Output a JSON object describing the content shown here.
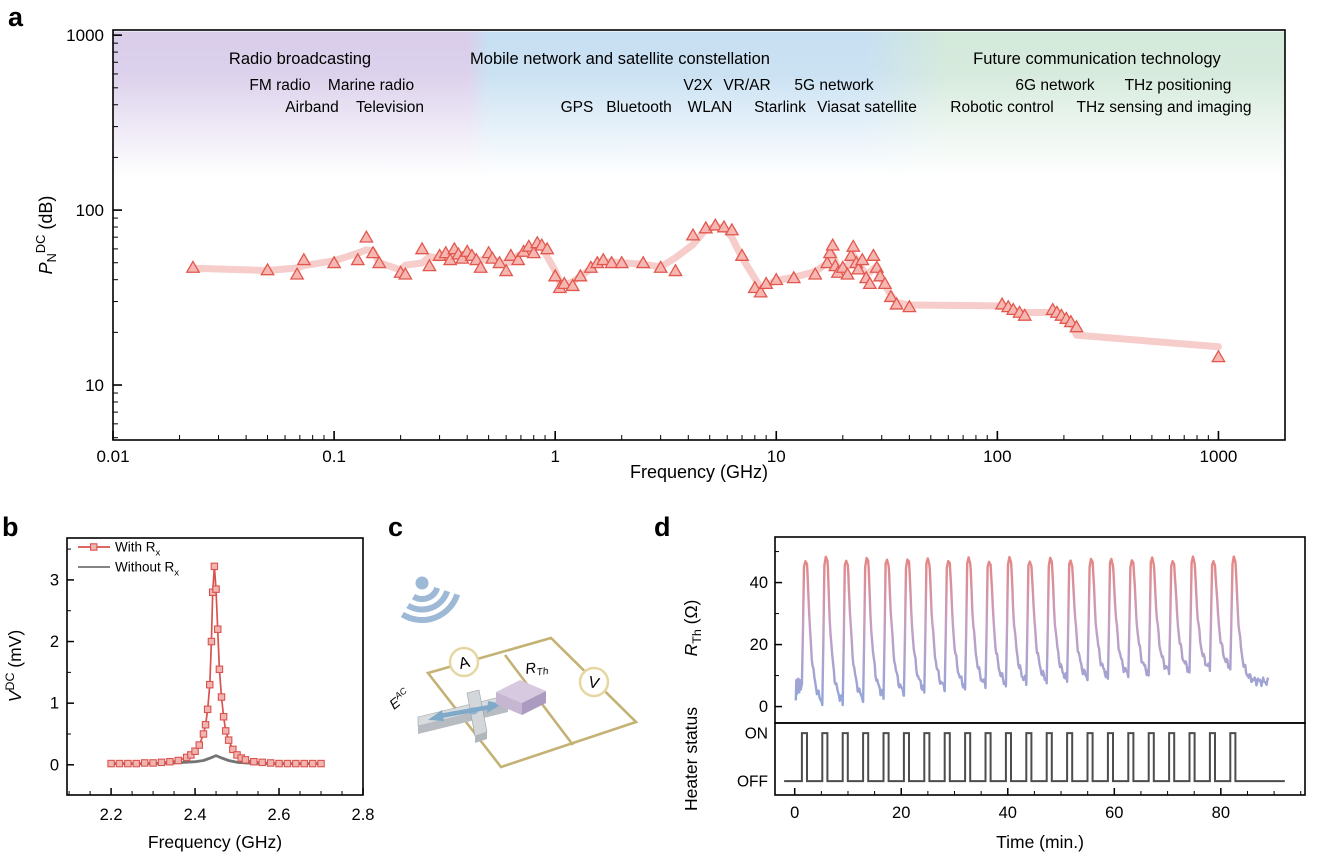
{
  "panels": {
    "a": {
      "letter": "a"
    },
    "b": {
      "letter": "b"
    },
    "c": {
      "letter": "c"
    },
    "d": {
      "letter": "d"
    }
  },
  "chart_data": [
    {
      "panel": "a",
      "type": "scatter",
      "xlabel": "Frequency (GHz)",
      "ylabel_parts": [
        [
          "P",
          "i"
        ],
        [
          "N",
          "sub"
        ],
        [
          "DC",
          "sup"
        ],
        [
          " (dB)",
          ""
        ]
      ],
      "x_scale": "log",
      "y_scale": "log",
      "xlim": [
        0.01,
        2000
      ],
      "ylim": [
        4.85,
        1070
      ],
      "xtick_values": [
        0.01,
        0.1,
        1,
        10,
        100,
        1000
      ],
      "xtick_labels": [
        "0.01",
        "0.1",
        "1",
        "10",
        "100",
        "1000"
      ],
      "ytick_values": [
        10,
        100,
        1000
      ],
      "ytick_labels": [
        "10",
        "100",
        "1000"
      ],
      "grid": false,
      "line_color": "#f5c9c5",
      "marker_fill": "#f6b7b2",
      "marker_edge": "#e2574d",
      "regions": [
        {
          "title": "Radio broadcasting",
          "title_color": "#9b9b9b",
          "band_color": "#d9cdea",
          "x_range_ghz": [
            0.01,
            0.4
          ],
          "title_cx": 300,
          "items": [
            {
              "label": "FM radio",
              "color": "#b39bd8",
              "cx": 280,
              "row": 1
            },
            {
              "label": "Marine radio",
              "color": "#f0a080",
              "cx": 371,
              "row": 1
            },
            {
              "label": "Airband",
              "color": "#86b7dc",
              "cx": 312,
              "row": 2
            },
            {
              "label": "Television",
              "color": "#a3907e",
              "cx": 390,
              "row": 2
            }
          ]
        },
        {
          "title": "Mobile network and satellite constellation",
          "title_color": "#9b9b9b",
          "band_color": "#c6dff2",
          "x_range_ghz": [
            0.5,
            25
          ],
          "title_cx": 620,
          "items": [
            {
              "label": "V2X",
              "color": "#8fb0c0",
              "cx": 698,
              "row": 1
            },
            {
              "label": "VR/AR",
              "color": "#b49bd8",
              "cx": 747,
              "row": 1
            },
            {
              "label": "5G network",
              "color": "#f0a52c",
              "cx": 834,
              "row": 1
            },
            {
              "label": "GPS",
              "color": "#d7a92c",
              "cx": 577,
              "row": 2
            },
            {
              "label": "Bluetooth",
              "color": "#62a8d8",
              "cx": 639,
              "row": 2
            },
            {
              "label": "WLAN",
              "color": "#f2a9bd",
              "cx": 710,
              "row": 2
            },
            {
              "label": "Starlink",
              "color": "#3f9fdd",
              "cx": 780,
              "row": 2
            },
            {
              "label": "Viasat satellite",
              "color": "#4fb8ba",
              "cx": 867,
              "row": 2
            }
          ]
        },
        {
          "title": "Future communication technology",
          "title_color": "#9b9b9b",
          "band_color": "#d3e9da",
          "x_range_ghz": [
            60,
            2000
          ],
          "title_cx": 1097,
          "items": [
            {
              "label": "6G network",
              "color": "#eaa41e",
              "cx": 1055,
              "row": 1
            },
            {
              "label": "THz positioning",
              "color": "#68abdc",
              "cx": 1178,
              "row": 1
            },
            {
              "label": "Robotic control",
              "color": "#c49b22",
              "cx": 1002,
              "row": 2
            },
            {
              "label": "THz sensing and imaging",
              "color": "#f195bb",
              "cx": 1164,
              "row": 2
            }
          ]
        }
      ],
      "points": [
        [
          0.023,
          47
        ],
        [
          0.05,
          45.5
        ],
        [
          0.068,
          43
        ],
        [
          0.073,
          52
        ],
        [
          0.1,
          50
        ],
        [
          0.128,
          52
        ],
        [
          0.14,
          70
        ],
        [
          0.15,
          57
        ],
        [
          0.16,
          50
        ],
        [
          0.2,
          44
        ],
        [
          0.21,
          43
        ],
        [
          0.25,
          60
        ],
        [
          0.27,
          48
        ],
        [
          0.3,
          55
        ],
        [
          0.32,
          57
        ],
        [
          0.335,
          52
        ],
        [
          0.35,
          60
        ],
        [
          0.365,
          56
        ],
        [
          0.38,
          53
        ],
        [
          0.4,
          58
        ],
        [
          0.42,
          55
        ],
        [
          0.44,
          52
        ],
        [
          0.46,
          47
        ],
        [
          0.5,
          57
        ],
        [
          0.52,
          53
        ],
        [
          0.56,
          50
        ],
        [
          0.6,
          45
        ],
        [
          0.63,
          55
        ],
        [
          0.68,
          52
        ],
        [
          0.72,
          58
        ],
        [
          0.76,
          62
        ],
        [
          0.8,
          57
        ],
        [
          0.83,
          65
        ],
        [
          0.87,
          63
        ],
        [
          0.92,
          60
        ],
        [
          1.0,
          42
        ],
        [
          1.05,
          36
        ],
        [
          1.1,
          38
        ],
        [
          1.2,
          37
        ],
        [
          1.3,
          42
        ],
        [
          1.45,
          47
        ],
        [
          1.55,
          50
        ],
        [
          1.65,
          52
        ],
        [
          1.8,
          50
        ],
        [
          2.0,
          50
        ],
        [
          2.5,
          50
        ],
        [
          3.0,
          47
        ],
        [
          3.5,
          45
        ],
        [
          4.2,
          72
        ],
        [
          4.8,
          79
        ],
        [
          5.3,
          82
        ],
        [
          5.8,
          80
        ],
        [
          6.3,
          77
        ],
        [
          7.0,
          55
        ],
        [
          8.0,
          36
        ],
        [
          8.5,
          34
        ],
        [
          9.0,
          38
        ],
        [
          10,
          40
        ],
        [
          12,
          41
        ],
        [
          15,
          43
        ],
        [
          17,
          50
        ],
        [
          17.5,
          57
        ],
        [
          18,
          63
        ],
        [
          18.5,
          48
        ],
        [
          19,
          44
        ],
        [
          20,
          47
        ],
        [
          21,
          43
        ],
        [
          21.8,
          55
        ],
        [
          22.3,
          62
        ],
        [
          23,
          50
        ],
        [
          23.5,
          46
        ],
        [
          24.5,
          52
        ],
        [
          25.5,
          41
        ],
        [
          26.5,
          38
        ],
        [
          27.5,
          55
        ],
        [
          28.5,
          47
        ],
        [
          29.5,
          42
        ],
        [
          31,
          38
        ],
        [
          33,
          32
        ],
        [
          35,
          29
        ],
        [
          40,
          28
        ],
        [
          105,
          29
        ],
        [
          112,
          28
        ],
        [
          118,
          27
        ],
        [
          126,
          26
        ],
        [
          133,
          25
        ],
        [
          178,
          27
        ],
        [
          186,
          26
        ],
        [
          195,
          25
        ],
        [
          205,
          24
        ],
        [
          215,
          23
        ],
        [
          228,
          21.5
        ],
        [
          1000,
          14.5
        ]
      ]
    },
    {
      "panel": "b",
      "type": "line",
      "xlabel": "Frequency (GHz)",
      "ylabel_parts": [
        [
          "V",
          "i"
        ],
        [
          "DC",
          "sup"
        ],
        [
          " (mV)",
          ""
        ]
      ],
      "xlim": [
        2.095,
        2.8
      ],
      "ylim": [
        -0.49,
        3.68
      ],
      "xtick_values": [
        2.2,
        2.4,
        2.6,
        2.8
      ],
      "xtick_labels": [
        "2.2",
        "2.4",
        "2.6",
        "2.8"
      ],
      "xminor_step": 0.05,
      "ytick_values": [
        0,
        1,
        2,
        3
      ],
      "ytick_labels": [
        "0",
        "1",
        "2",
        "3"
      ],
      "yminor_values": [
        0.5,
        1.5,
        2.5,
        3.5
      ],
      "legend_position": "top-left",
      "series": [
        {
          "name_parts": [
            [
              "With R",
              ""
            ],
            [
              "x",
              "sub"
            ]
          ],
          "color": "#d9534e",
          "marker": "square",
          "marker_fill": "#f2b4b0",
          "points": [
            [
              2.2,
              0.02
            ],
            [
              2.22,
              0.02
            ],
            [
              2.24,
              0.02
            ],
            [
              2.26,
              0.02
            ],
            [
              2.28,
              0.03
            ],
            [
              2.3,
              0.03
            ],
            [
              2.32,
              0.04
            ],
            [
              2.34,
              0.05
            ],
            [
              2.36,
              0.07
            ],
            [
              2.38,
              0.12
            ],
            [
              2.39,
              0.16
            ],
            [
              2.4,
              0.22
            ],
            [
              2.41,
              0.32
            ],
            [
              2.42,
              0.5
            ],
            [
              2.425,
              0.65
            ],
            [
              2.43,
              0.9
            ],
            [
              2.435,
              1.3
            ],
            [
              2.439,
              2.0
            ],
            [
              2.442,
              2.8
            ],
            [
              2.446,
              3.22
            ],
            [
              2.45,
              2.85
            ],
            [
              2.454,
              2.2
            ],
            [
              2.458,
              1.55
            ],
            [
              2.463,
              1.1
            ],
            [
              2.468,
              0.78
            ],
            [
              2.473,
              0.55
            ],
            [
              2.48,
              0.4
            ],
            [
              2.49,
              0.25
            ],
            [
              2.5,
              0.16
            ],
            [
              2.51,
              0.11
            ],
            [
              2.52,
              0.08
            ],
            [
              2.54,
              0.05
            ],
            [
              2.56,
              0.04
            ],
            [
              2.58,
              0.03
            ],
            [
              2.6,
              0.02
            ],
            [
              2.62,
              0.02
            ],
            [
              2.64,
              0.02
            ],
            [
              2.66,
              0.02
            ],
            [
              2.68,
              0.02
            ],
            [
              2.7,
              0.02
            ]
          ]
        },
        {
          "name_parts": [
            [
              "Without R",
              ""
            ],
            [
              "x",
              "sub"
            ]
          ],
          "color": "#5c5c5c",
          "marker": "none",
          "points": [
            [
              2.2,
              0.02
            ],
            [
              2.3,
              0.02
            ],
            [
              2.35,
              0.03
            ],
            [
              2.4,
              0.05
            ],
            [
              2.42,
              0.07
            ],
            [
              2.44,
              0.12
            ],
            [
              2.45,
              0.15
            ],
            [
              2.46,
              0.12
            ],
            [
              2.48,
              0.07
            ],
            [
              2.5,
              0.04
            ],
            [
              2.55,
              0.02
            ],
            [
              2.6,
              0.02
            ],
            [
              2.7,
              0.02
            ]
          ]
        }
      ]
    },
    {
      "panel": "d-top",
      "type": "line",
      "ylabel_parts": [
        [
          "R",
          "i"
        ],
        [
          "Th",
          "sub"
        ],
        [
          " (Ω)",
          ""
        ]
      ],
      "ylim": [
        -5.3,
        54.7
      ],
      "ytick_values": [
        0,
        20,
        40
      ],
      "ytick_labels": [
        "0",
        "20",
        "40"
      ],
      "yminor_values": [
        10,
        30,
        50
      ],
      "gradient_colors": [
        "#e8837c",
        "#c79fc2",
        "#8ea6dc"
      ],
      "cycles": {
        "t_first_on": 1.35,
        "period": 3.83,
        "on_duration": 0.95,
        "n": 22,
        "peak_ohm": 48,
        "final_level": 8,
        "t_end": 89,
        "troughs": [
          0.5,
          0.5,
          1.5,
          2.5,
          3.5,
          4.5,
          5,
          5.5,
          6,
          6.5,
          7,
          7.5,
          8,
          8.5,
          9,
          9.5,
          10,
          10.5,
          11,
          11.5,
          12,
          12.5
        ],
        "pre_points": [
          [
            0.2,
            2
          ],
          [
            0.3,
            8.5
          ],
          [
            0.4,
            4
          ],
          [
            0.5,
            8.8
          ],
          [
            0.6,
            5
          ],
          [
            0.7,
            9
          ],
          [
            0.85,
            4.5
          ],
          [
            1.0,
            8.5
          ],
          [
            1.15,
            5.5
          ],
          [
            1.3,
            7
          ]
        ]
      }
    },
    {
      "panel": "d-bottom",
      "type": "step",
      "xlabel": "Time (min.)",
      "ylabel": "Heater status",
      "xlim": [
        -3.7,
        95.8
      ],
      "xtick_values": [
        0,
        20,
        40,
        60,
        80
      ],
      "xtick_labels": [
        "0",
        "20",
        "40",
        "60",
        "80"
      ],
      "xminor_step": 5,
      "ytick_labels": [
        "ON",
        "OFF"
      ],
      "on_value": 1,
      "off_value": 0,
      "color": "#4d4d4d"
    }
  ],
  "diagram": {
    "ammeter_label": "A",
    "voltmeter_label": "V",
    "resistor_label": {
      "base": "R",
      "sub": "Th"
    },
    "field_label": {
      "base": "E",
      "sup": "AC"
    },
    "wire_color": "#c4b274",
    "wifi_color": "#9db9d6",
    "device_color": "#8fb4d1",
    "meter_ring_color": "#e6d7a2",
    "resistor_top_color": "#d6c9e0",
    "resistor_left_color": "#c6b6d2",
    "resistor_right_color": "#ab9bc0",
    "resistor_label_color": "#9a8cc8",
    "field_label_color": "#8aa4bc",
    "arrow_color": "#7ea9c9"
  }
}
